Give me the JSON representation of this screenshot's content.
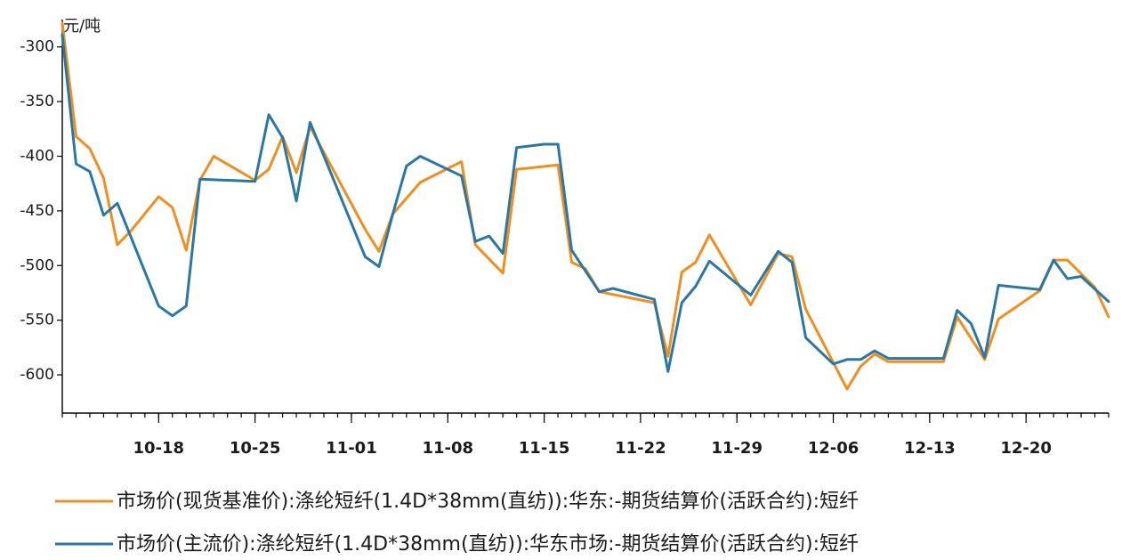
{
  "chart_data": {
    "type": "line",
    "ylabel": "元/吨",
    "ylim": [
      -635,
      -275
    ],
    "yticks": [
      -300,
      -350,
      -400,
      -450,
      -500,
      -550,
      -600
    ],
    "xlim": [
      "10-11",
      "12-26"
    ],
    "xtick_labels": [
      "10-18",
      "10-25",
      "11-01",
      "11-08",
      "11-15",
      "11-22",
      "11-29",
      "12-06",
      "12-13",
      "12-20"
    ],
    "xtick_dates": [
      "2024-10-18",
      "2024-10-25",
      "2024-11-01",
      "2024-11-08",
      "2024-11-15",
      "2024-11-22",
      "2024-11-29",
      "2024-12-06",
      "2024-12-13",
      "2024-12-20"
    ],
    "x_range_dates": [
      "2024-10-11",
      "2024-12-26"
    ],
    "legend_position": "bottom",
    "series": [
      {
        "name": "市场价(现货基准价):涤纶短纤(1.4D*38mm(直纺)):华东:-期货结算价(活跃合约):短纤",
        "color": "#F28E1C",
        "points": [
          [
            "2024-10-11",
            -278
          ],
          [
            "2024-10-12",
            -382
          ],
          [
            "2024-10-13",
            -393
          ],
          [
            "2024-10-14",
            -420
          ],
          [
            "2024-10-15",
            -481
          ],
          [
            "2024-10-16",
            -468
          ],
          [
            "2024-10-18",
            -437
          ],
          [
            "2024-10-19",
            -447
          ],
          [
            "2024-10-20",
            -486
          ],
          [
            "2024-10-21",
            -422
          ],
          [
            "2024-10-22",
            -400
          ],
          [
            "2024-10-25",
            -422
          ],
          [
            "2024-10-26",
            -412
          ],
          [
            "2024-10-27",
            -382
          ],
          [
            "2024-10-28",
            -415
          ],
          [
            "2024-10-29",
            -373
          ],
          [
            "2024-11-02",
            -467
          ],
          [
            "2024-11-03",
            -487
          ],
          [
            "2024-11-04",
            -453
          ],
          [
            "2024-11-06",
            -424
          ],
          [
            "2024-11-09",
            -405
          ],
          [
            "2024-11-10",
            -481
          ],
          [
            "2024-11-12",
            -507
          ],
          [
            "2024-11-13",
            -412
          ],
          [
            "2024-11-16",
            -408
          ],
          [
            "2024-11-17",
            -497
          ],
          [
            "2024-11-18",
            -503
          ],
          [
            "2024-11-19",
            -524
          ],
          [
            "2024-11-23",
            -534
          ],
          [
            "2024-11-24",
            -583
          ],
          [
            "2024-11-25",
            -506
          ],
          [
            "2024-11-26",
            -497
          ],
          [
            "2024-11-27",
            -472
          ],
          [
            "2024-11-30",
            -536
          ],
          [
            "2024-12-02",
            -489
          ],
          [
            "2024-12-03",
            -492
          ],
          [
            "2024-12-04",
            -540
          ],
          [
            "2024-12-07",
            -613
          ],
          [
            "2024-12-08",
            -592
          ],
          [
            "2024-12-09",
            -581
          ],
          [
            "2024-12-10",
            -588
          ],
          [
            "2024-12-14",
            -588
          ],
          [
            "2024-12-15",
            -547
          ],
          [
            "2024-12-17",
            -586
          ],
          [
            "2024-12-18",
            -549
          ],
          [
            "2024-12-21",
            -523
          ],
          [
            "2024-12-22",
            -495
          ],
          [
            "2024-12-23",
            -495
          ],
          [
            "2024-12-25",
            -520
          ],
          [
            "2024-12-26",
            -547
          ]
        ]
      },
      {
        "name": "市场价(主流价):涤纶短纤(1.4D*38mm(直纺)):华东市场:-期货结算价(活跃合约):短纤",
        "color": "#2878A7",
        "points": [
          [
            "2024-10-11",
            -289
          ],
          [
            "2024-10-12",
            -407
          ],
          [
            "2024-10-13",
            -414
          ],
          [
            "2024-10-14",
            -454
          ],
          [
            "2024-10-15",
            -443
          ],
          [
            "2024-10-18",
            -537
          ],
          [
            "2024-10-19",
            -546
          ],
          [
            "2024-10-20",
            -537
          ],
          [
            "2024-10-21",
            -421
          ],
          [
            "2024-10-25",
            -423
          ],
          [
            "2024-10-26",
            -362
          ],
          [
            "2024-10-27",
            -383
          ],
          [
            "2024-10-28",
            -441
          ],
          [
            "2024-10-29",
            -369
          ],
          [
            "2024-11-02",
            -492
          ],
          [
            "2024-11-03",
            -501
          ],
          [
            "2024-11-04",
            -453
          ],
          [
            "2024-11-05",
            -409
          ],
          [
            "2024-11-06",
            -400
          ],
          [
            "2024-11-09",
            -418
          ],
          [
            "2024-11-10",
            -478
          ],
          [
            "2024-11-11",
            -473
          ],
          [
            "2024-11-12",
            -489
          ],
          [
            "2024-11-13",
            -392
          ],
          [
            "2024-11-15",
            -389
          ],
          [
            "2024-11-16",
            -389
          ],
          [
            "2024-11-17",
            -486
          ],
          [
            "2024-11-19",
            -524
          ],
          [
            "2024-11-20",
            -521
          ],
          [
            "2024-11-23",
            -531
          ],
          [
            "2024-11-24",
            -597
          ],
          [
            "2024-11-25",
            -534
          ],
          [
            "2024-11-26",
            -519
          ],
          [
            "2024-11-27",
            -496
          ],
          [
            "2024-11-30",
            -527
          ],
          [
            "2024-12-02",
            -487
          ],
          [
            "2024-12-03",
            -497
          ],
          [
            "2024-12-04",
            -566
          ],
          [
            "2024-12-06",
            -590
          ],
          [
            "2024-12-07",
            -586
          ],
          [
            "2024-12-08",
            -586
          ],
          [
            "2024-12-09",
            -578
          ],
          [
            "2024-12-10",
            -585
          ],
          [
            "2024-12-14",
            -585
          ],
          [
            "2024-12-15",
            -541
          ],
          [
            "2024-12-16",
            -553
          ],
          [
            "2024-12-17",
            -584
          ],
          [
            "2024-12-18",
            -518
          ],
          [
            "2024-12-21",
            -522
          ],
          [
            "2024-12-22",
            -495
          ],
          [
            "2024-12-23",
            -512
          ],
          [
            "2024-12-24",
            -510
          ],
          [
            "2024-12-26",
            -533
          ]
        ]
      }
    ]
  }
}
